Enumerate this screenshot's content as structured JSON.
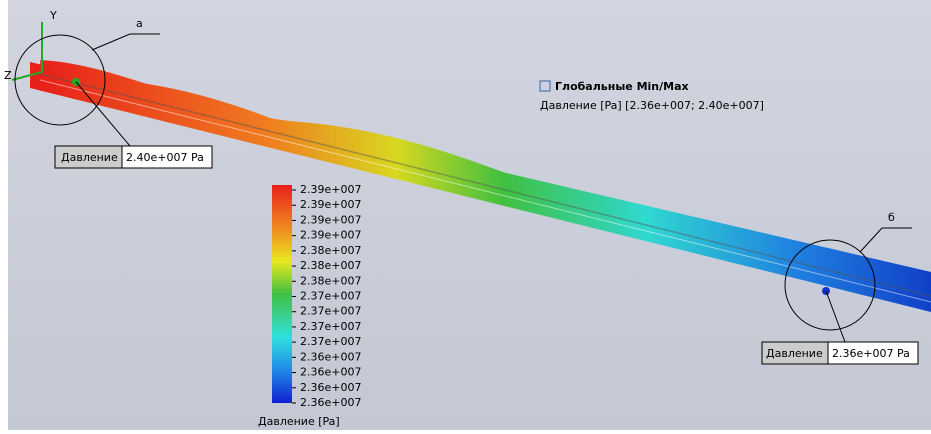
{
  "triad": {
    "y_label": "Y",
    "z_label": "Z"
  },
  "callouts": [
    {
      "label": "а"
    },
    {
      "label": "б"
    }
  ],
  "probes": [
    {
      "name": "Давление",
      "value": "2.40e+007 Pa"
    },
    {
      "name": "Давление",
      "value": "2.36e+007 Pa"
    }
  ],
  "global_minmax": {
    "title": "Глобальные Min/Max",
    "text": "Давление [Pa] [2.36e+007; 2.40e+007]"
  },
  "legend": {
    "labels": [
      "2.39e+007",
      "2.39e+007",
      "2.39e+007",
      "2.39e+007",
      "2.38e+007",
      "2.38e+007",
      "2.38e+007",
      "2.37e+007",
      "2.37e+007",
      "2.37e+007",
      "2.37e+007",
      "2.36e+007",
      "2.36e+007",
      "2.36e+007",
      "2.36e+007"
    ],
    "title": "Давление [Pa]"
  }
}
